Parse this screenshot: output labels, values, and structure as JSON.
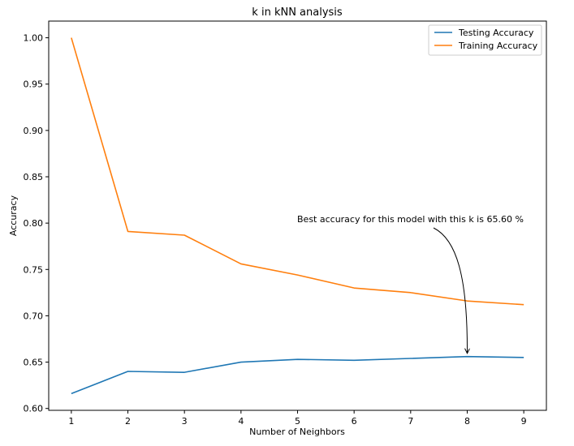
{
  "chart_data": {
    "type": "line",
    "title": "k in kNN analysis",
    "xlabel": "Number of Neighbors",
    "ylabel": "Accuracy",
    "x": [
      1,
      2,
      3,
      4,
      5,
      6,
      7,
      8,
      9
    ],
    "xticks": [
      "1",
      "2",
      "3",
      "4",
      "5",
      "6",
      "7",
      "8",
      "9"
    ],
    "yticks": [
      "0.60",
      "0.65",
      "0.70",
      "0.75",
      "0.80",
      "0.85",
      "0.90",
      "0.95",
      "1.00"
    ],
    "xlim": [
      0.6,
      9.4
    ],
    "ylim": [
      0.598,
      1.018
    ],
    "grid": false,
    "legend_position": "top-right",
    "series": [
      {
        "name": "Testing Accuracy",
        "color": "#1f77b4",
        "values": [
          0.616,
          0.64,
          0.639,
          0.65,
          0.653,
          0.652,
          0.654,
          0.656,
          0.655
        ]
      },
      {
        "name": "Training Accuracy",
        "color": "#ff7f0e",
        "values": [
          1.0,
          0.791,
          0.787,
          0.756,
          0.744,
          0.73,
          0.725,
          0.716,
          0.712
        ]
      }
    ],
    "annotation": {
      "text": "Best accuracy for this model with this k is 65.60 %",
      "x": 8,
      "y": 0.656
    }
  }
}
